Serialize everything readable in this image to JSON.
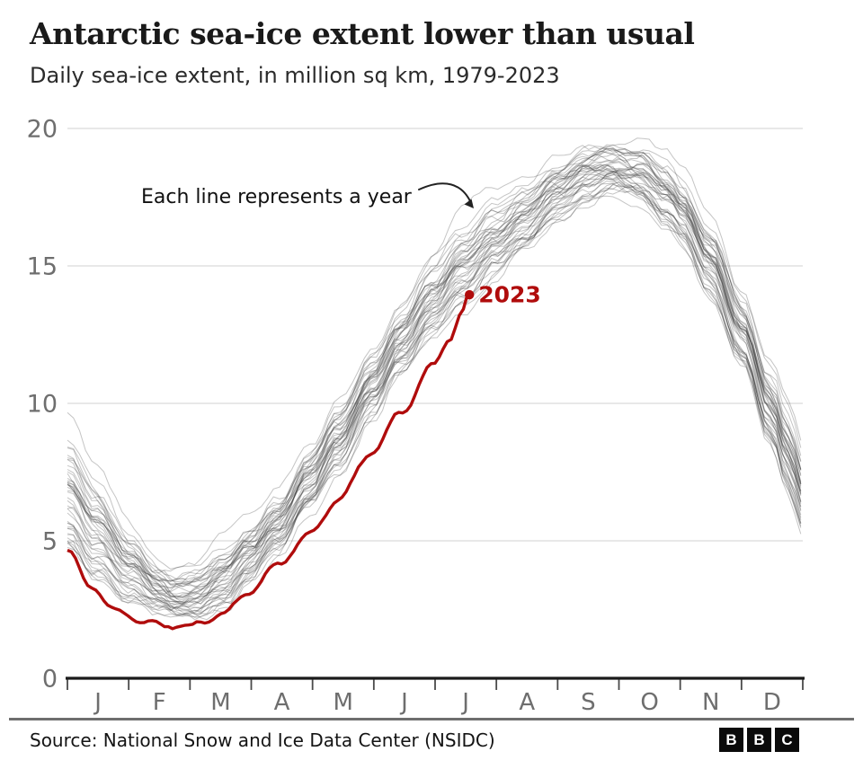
{
  "header": {
    "title": "Antarctic sea-ice extent lower than usual",
    "subtitle": "Daily sea-ice extent, in million sq km, 1979-2023"
  },
  "footer": {
    "source": "Source: National Snow and Ice Data Center (NSIDC)",
    "logo_letters": [
      "B",
      "B",
      "C"
    ]
  },
  "chart_data": {
    "type": "line",
    "title": "Antarctic sea-ice extent lower than usual",
    "subtitle": "Daily sea-ice extent, in million sq km, 1979-2023",
    "units": "million sq km",
    "annotation": "Each line represents a year",
    "x_months": [
      "J",
      "F",
      "M",
      "A",
      "M",
      "J",
      "J",
      "A",
      "S",
      "O",
      "N",
      "D"
    ],
    "y_ticks": [
      0,
      5,
      10,
      15,
      20
    ],
    "ylim": [
      0,
      20.5
    ],
    "x_range_days": [
      1,
      365
    ],
    "grid": "horizontal-only",
    "legend": "none",
    "gray_years": {
      "first_year": 1979,
      "last_year": 2022,
      "count": 44,
      "description": "one thin gray line per year, daily extent",
      "jan1_range": [
        5.2,
        9.7
      ],
      "feb_min_range": [
        2.2,
        4.2
      ],
      "sep_peak_range": [
        17.5,
        20.1
      ],
      "dec31_range": [
        4.8,
        8.2
      ]
    },
    "climatology_center": {
      "day_of_year": [
        1,
        15,
        32,
        46,
        54,
        65,
        79,
        91,
        105,
        121,
        135,
        152,
        166,
        182,
        196,
        213,
        227,
        244,
        258,
        270,
        284,
        298,
        305,
        319,
        335,
        349,
        358,
        365
      ],
      "extent": [
        6.9,
        5.5,
        4.1,
        3.3,
        3.05,
        3.1,
        3.7,
        4.6,
        5.7,
        7.3,
        8.8,
        10.7,
        12.3,
        13.8,
        15.0,
        16.1,
        16.9,
        17.8,
        18.4,
        18.6,
        18.4,
        17.6,
        17.0,
        15.3,
        12.7,
        9.9,
        8.2,
        6.8
      ]
    },
    "year_spread_envelope": {
      "day_of_year": [
        1,
        50,
        120,
        200,
        270,
        305,
        335,
        365
      ],
      "plus_minus": [
        2.0,
        0.8,
        1.0,
        1.2,
        0.8,
        0.9,
        1.2,
        1.5
      ]
    },
    "series_2023": {
      "name": "2023",
      "color": "#b00c0c",
      "day_of_year": [
        1,
        12,
        25,
        40,
        50,
        60,
        68,
        78,
        91,
        105,
        121,
        135,
        152,
        166,
        182,
        190,
        196,
        200
      ],
      "extent": [
        4.6,
        3.4,
        2.5,
        2.0,
        1.85,
        1.9,
        2.05,
        2.4,
        3.1,
        4.1,
        5.3,
        6.5,
        8.2,
        9.7,
        11.4,
        12.3,
        13.2,
        13.95
      ],
      "end_value": 13.95,
      "end_day_approx": "mid-July",
      "end_marker": "dot"
    },
    "colors": {
      "year_lines": "#3f3f3f",
      "year_lines_opacity": 0.3,
      "gridlines": "#d9d9d9",
      "axis": "#1a1a1a",
      "tick_labels": "#6e6e6e",
      "annotation_text": "#111111",
      "red_line": "#b00c0c"
    }
  }
}
